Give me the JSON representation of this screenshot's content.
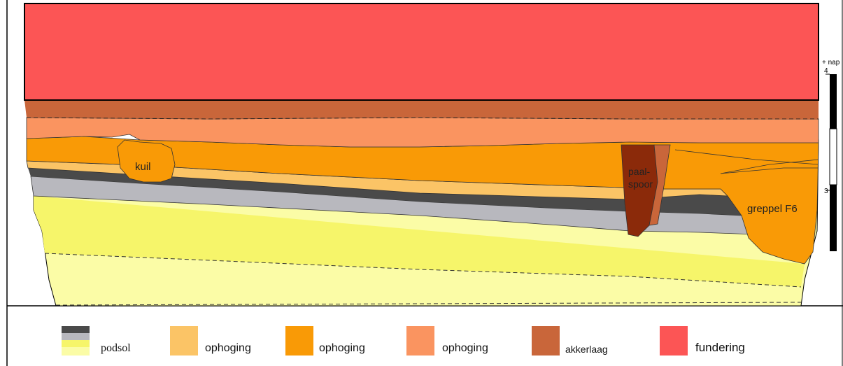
{
  "labels": {
    "kuil": "kuil",
    "paalspoor_line1": "paal-",
    "paalspoor_line2": "spoor",
    "greppel": "greppel F6"
  },
  "scale": {
    "unit": "+ nap",
    "top": "4",
    "bottom": "3"
  },
  "legend": [
    {
      "label": "podsol",
      "colors": [
        "#4a4a4a",
        "#b8b8be",
        "#f6f56a",
        "#fbfca6"
      ]
    },
    {
      "label": "ophoging",
      "colors": [
        "#fbc466"
      ]
    },
    {
      "label": "ophoging",
      "colors": [
        "#f99a06"
      ]
    },
    {
      "label": "ophoging",
      "colors": [
        "#fa9460"
      ]
    },
    {
      "label": "akkerlaag",
      "colors": [
        "#c9663a"
      ]
    },
    {
      "label": "fundering",
      "colors": [
        "#fc5555"
      ]
    }
  ],
  "colors": {
    "fundering": "#fc5555",
    "akkerlaag": "#c9663a",
    "ophoging_light": "#fbc466",
    "ophoging_orange": "#f99a06",
    "ophoging_salmon": "#fa9460",
    "podsol_dark": "#4a4a4a",
    "podsol_grey": "#b8b8be",
    "podsol_yellow": "#f6f56a",
    "podsol_pale": "#fbfca6",
    "paalspoor": "#8b2a0a"
  }
}
